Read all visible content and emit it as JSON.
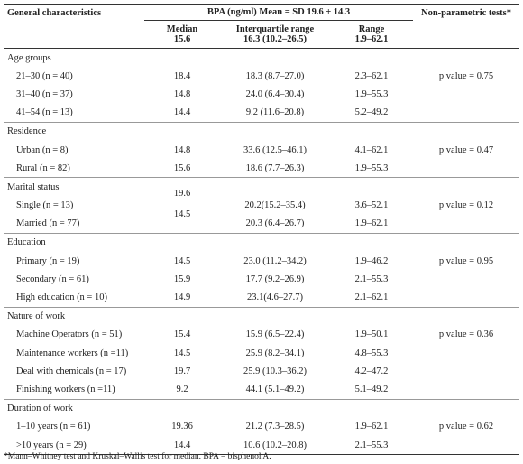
{
  "table": {
    "header": {
      "characteristics": "General characteristics",
      "bpa": "BPA (ng/ml) Mean = SD 19.6 ± 14.3",
      "median": "Median",
      "median_value": "15.6",
      "iqr": "Interquartile range",
      "iqr_value": "16.3 (10.2–26.5)",
      "range": "Range",
      "range_value": "1.9–62.1",
      "test": "Non-parametric tests*"
    },
    "groups": [
      {
        "label": "Age groups",
        "test": "p value = 0.75",
        "rows": [
          [
            "21–30 (n = 40)",
            "18.4",
            "18.3 (8.7–27.0)",
            "2.3–62.1"
          ],
          [
            "31–40 (n = 37)",
            "14.8",
            "24.0 (6.4–30.4)",
            "1.9–55.3"
          ],
          [
            "41–54 (n = 13)",
            "14.4",
            "9.2 (11.6–20.8)",
            "5.2–49.2"
          ]
        ]
      },
      {
        "label": "Residence",
        "test": "p value = 0.47",
        "rows": [
          [
            "Urban (n = 8)",
            "14.8",
            "33.6 (12.5–46.1)",
            "4.1–62.1"
          ],
          [
            "Rural (n = 82)",
            "15.6",
            "18.6 (7.7–26.3)",
            "1.9–55.3"
          ]
        ]
      },
      {
        "label": "Marital status",
        "test": "p value = 0.12",
        "rows": [
          [
            "Single (n = 13)",
            "19.6",
            "20.2(15.2–35.4)",
            "3.6–52.1"
          ],
          [
            "Married (n = 77)",
            "14.5",
            "20.3 (6.4–26.7)",
            "1.9–62.1"
          ]
        ]
      },
      {
        "label": "Education",
        "test": "p value = 0.95",
        "rows": [
          [
            "Primary (n = 19)",
            "14.5",
            "23.0 (11.2–34.2)",
            "1.9–46.2"
          ],
          [
            "Secondary (n = 61)",
            "15.9",
            "17.7 (9.2–26.9)",
            "2.1–55.3"
          ],
          [
            "High education (n = 10)",
            "14.9",
            "23.1(4.6–27.7)",
            "2.1–62.1"
          ]
        ]
      },
      {
        "label": "Nature of work",
        "test": "p value = 0.36",
        "rows": [
          [
            "Machine Operators (n = 51)",
            "15.4",
            "15.9 (6.5–22.4)",
            "1.9–50.1"
          ],
          [
            "Maintenance workers (n =11)",
            "14.5",
            "25.9 (8.2–34.1)",
            "4.8–55.3"
          ],
          [
            "Deal with chemicals (n = 17)",
            "19.7",
            "25.9 (10.3–36.2)",
            "4.2–47.2"
          ],
          [
            "Finishing workers (n =11)",
            "9.2",
            "44.1 (5.1–49.2)",
            "5.1–49.2"
          ]
        ]
      },
      {
        "label": "Duration of work",
        "test": "p value = 0.62",
        "rows": [
          [
            "1–10 years (n = 61)",
            "19.36",
            "21.2 (7.3–28.5)",
            "1.9–62.1"
          ],
          [
            ">10 years (n = 29)",
            "14.4",
            "10.6 (10.2–20.8)",
            "2.1–55.3"
          ]
        ]
      }
    ],
    "footnote": "*Mann–Whitney test and Kruskal–Wallis test for median. BPA = bisphenol A."
  }
}
